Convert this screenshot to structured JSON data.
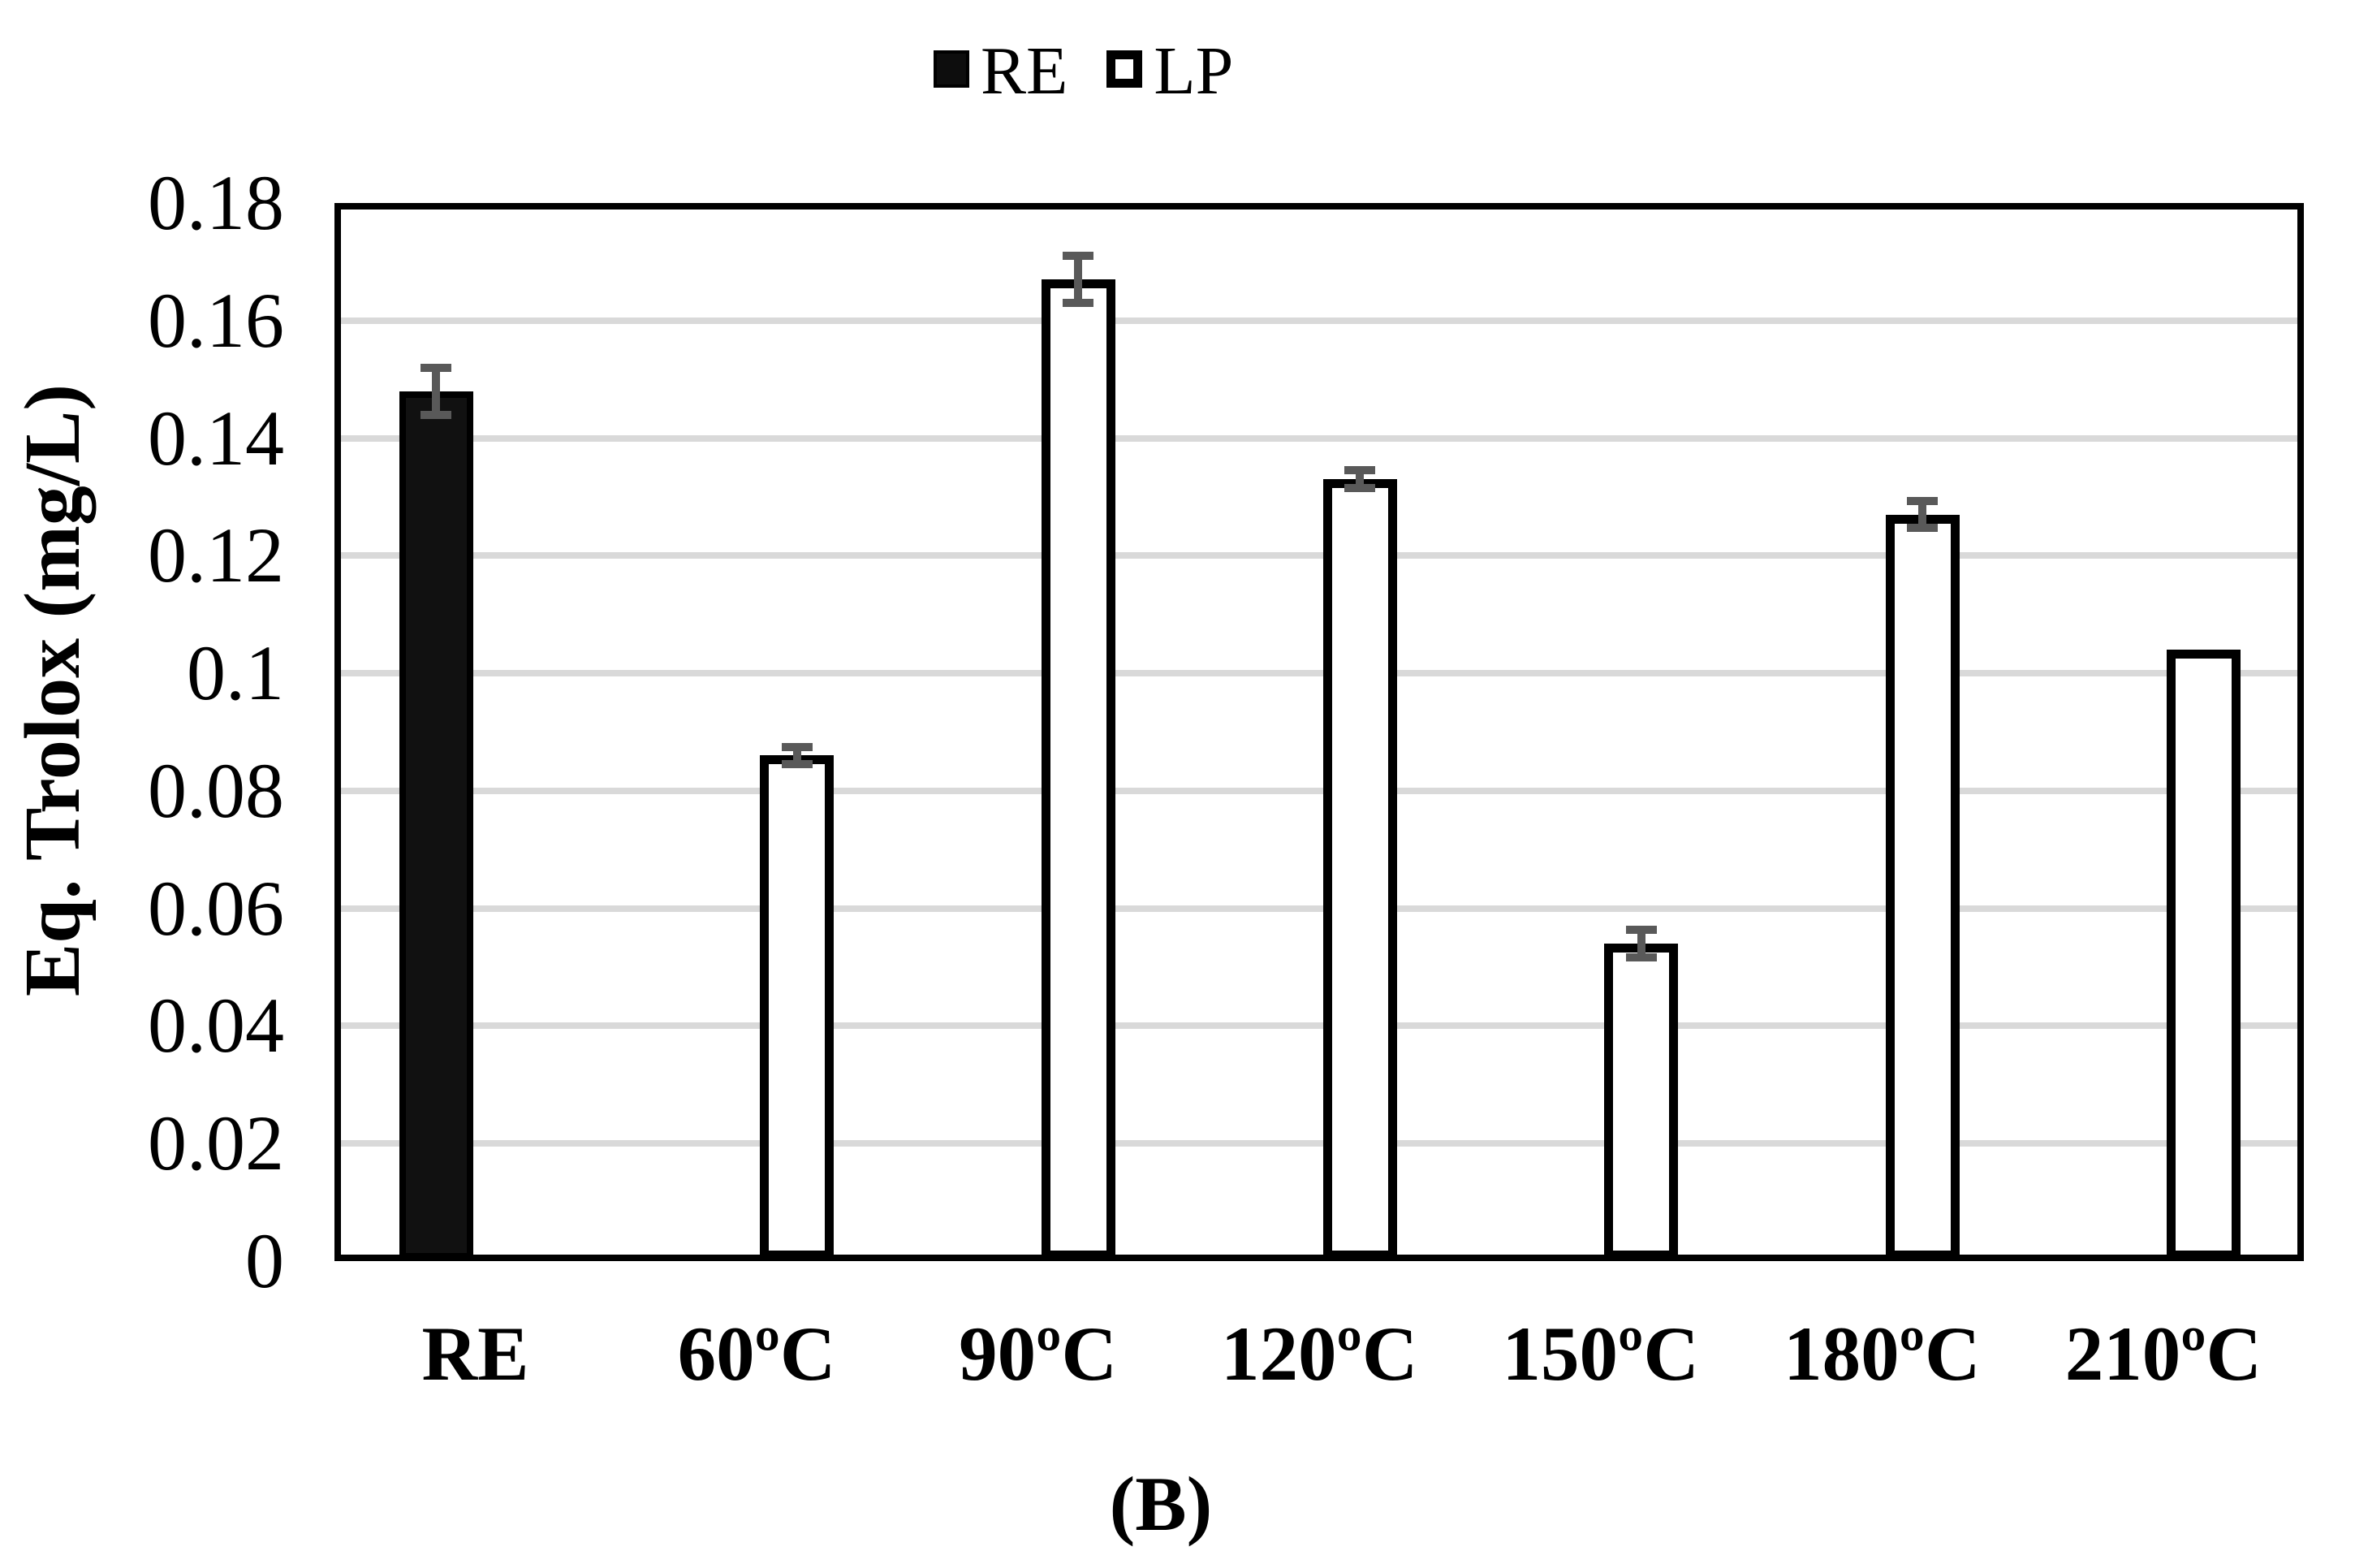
{
  "figure": {
    "caption": "(B)"
  },
  "legend": {
    "items": [
      {
        "label": "RE",
        "swatch": "filled-black-square"
      },
      {
        "label": "LP",
        "swatch": "open-white-square"
      }
    ]
  },
  "axes": {
    "y_title": "Eq. Trolox (mg/L)",
    "x_tick_labels": [
      "RE",
      "60ºC",
      "90ºC",
      "120ºC",
      "150ºC",
      "180ºC",
      "210ºC"
    ],
    "y_tick_labels": [
      "0",
      "0.02",
      "0.04",
      "0.06",
      "0.08",
      "0.1",
      "0.12",
      "0.14",
      "0.16",
      "0.18"
    ]
  },
  "colors": {
    "re_bar_fill": "#111111",
    "re_bar_border": "#000000",
    "lp_bar_fill": "#ffffff",
    "lp_bar_border": "#000000",
    "error_bar": "#595959",
    "gridline": "#d9d9d9",
    "frame": "#000000"
  },
  "chart_data": {
    "type": "bar",
    "categories": [
      "RE",
      "60ºC",
      "90ºC",
      "120ºC",
      "150ºC",
      "180ºC",
      "210ºC"
    ],
    "series": [
      {
        "name": "RE",
        "values": [
          0.148,
          null,
          null,
          null,
          null,
          null,
          null
        ],
        "errors": [
          0.004,
          null,
          null,
          null,
          null,
          null,
          null
        ]
      },
      {
        "name": "LP",
        "values": [
          null,
          0.086,
          0.167,
          0.133,
          0.054,
          0.127,
          0.104
        ],
        "errors": [
          null,
          0.0015,
          0.004,
          0.0015,
          0.0023,
          0.0023,
          null
        ]
      }
    ],
    "title": "",
    "xlabel": "",
    "ylabel": "Eq. Trolox (mg/L)",
    "ylim": [
      0,
      0.18
    ],
    "ytick_step": 0.02,
    "yticks": [
      0,
      0.02,
      0.04,
      0.06,
      0.08,
      0.1,
      0.12,
      0.14,
      0.16,
      0.18
    ],
    "grid": "horizontal",
    "legend_position": "top-center",
    "error_bars": true,
    "caption": "(B)"
  }
}
